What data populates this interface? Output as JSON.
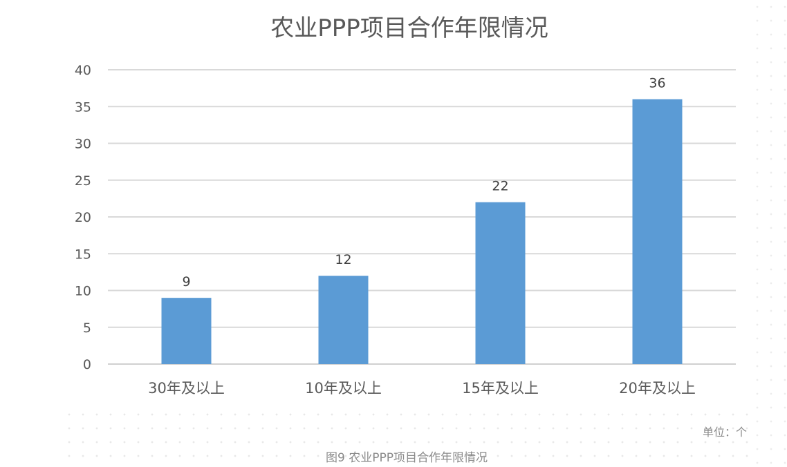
{
  "chart_data": {
    "type": "bar",
    "title": "农业PPP项目合作年限情况",
    "categories": [
      "30年及以上",
      "10年及以上",
      "15年及以上",
      "20年及以上"
    ],
    "values": [
      9,
      12,
      22,
      36
    ],
    "ylim": [
      0,
      40
    ],
    "yticks": [
      0,
      5,
      10,
      15,
      20,
      25,
      30,
      35,
      40
    ],
    "grid": true,
    "bar_color": "#5b9bd5",
    "data_labels": true
  },
  "unit_note": "单位：个",
  "caption": "图9 农业PPP项目合作年限情况"
}
